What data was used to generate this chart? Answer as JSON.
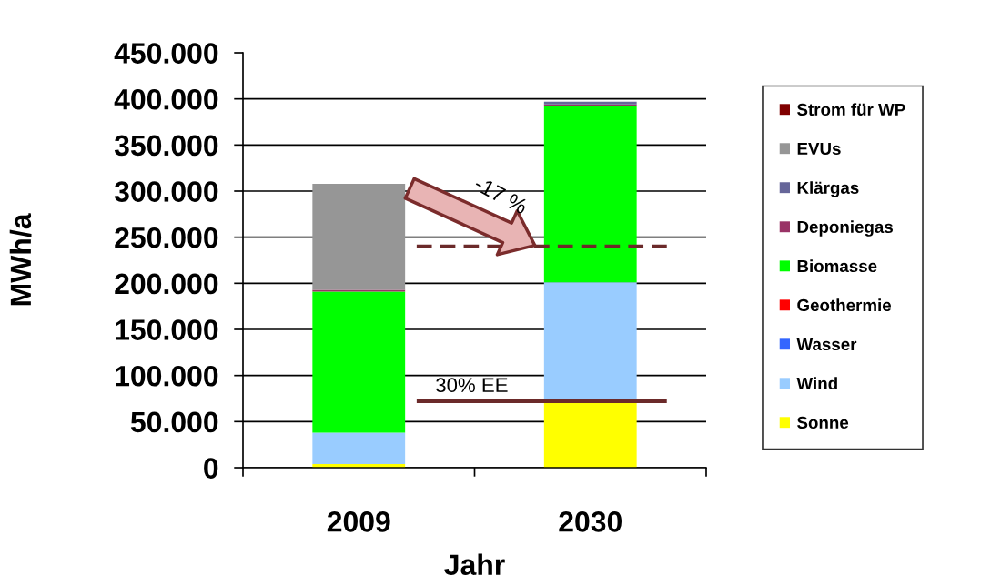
{
  "chart_data": {
    "type": "bar",
    "stacked": true,
    "xlabel": "Jahr",
    "ylabel": "MWh/a",
    "categories": [
      "2009",
      "2030"
    ],
    "series": [
      {
        "name": "Sonne",
        "color": "#ffff00",
        "values": [
          4000,
          71000
        ]
      },
      {
        "name": "Wind",
        "color": "#99ccff",
        "values": [
          34000,
          130000
        ]
      },
      {
        "name": "Wasser",
        "color": "#3366ff",
        "values": [
          null,
          null
        ]
      },
      {
        "name": "Geothermie",
        "color": "#ff0000",
        "values": [
          null,
          null
        ]
      },
      {
        "name": "Biomasse",
        "color": "#00ff00",
        "values": [
          153000,
          191000
        ]
      },
      {
        "name": "Deponiegas",
        "color": "#993366",
        "values": [
          2000,
          2000
        ]
      },
      {
        "name": "Klärgas",
        "color": "#666699",
        "values": [
          null,
          3000
        ]
      },
      {
        "name": "EVUs",
        "color": "#969696",
        "values": [
          115000,
          null
        ]
      },
      {
        "name": "Strom für WP",
        "color": "#800000",
        "values": [
          null,
          null
        ]
      }
    ],
    "ylim": [
      0,
      450000
    ],
    "yticks": [
      {
        "value": 0,
        "label": "0"
      },
      {
        "value": 50000,
        "label": "50.000"
      },
      {
        "value": 100000,
        "label": "100.000"
      },
      {
        "value": 150000,
        "label": "150.000"
      },
      {
        "value": 200000,
        "label": "200.000"
      },
      {
        "value": 250000,
        "label": "250.000"
      },
      {
        "value": 300000,
        "label": "300.000"
      },
      {
        "value": 350000,
        "label": "350.000"
      },
      {
        "value": 400000,
        "label": "400.000"
      },
      {
        "value": 450000,
        "label": "450.000"
      }
    ],
    "ref_lines": [
      {
        "axis": "y",
        "value": 240000,
        "color": "#6b2a2a",
        "line_style": "dashed"
      },
      {
        "axis": "y",
        "value": 72000,
        "label": "30% EE",
        "color": "#6b2a2a",
        "line_style": "solid"
      }
    ],
    "annotations": [
      "-17 %"
    ],
    "grid": "y",
    "legend": "right"
  }
}
